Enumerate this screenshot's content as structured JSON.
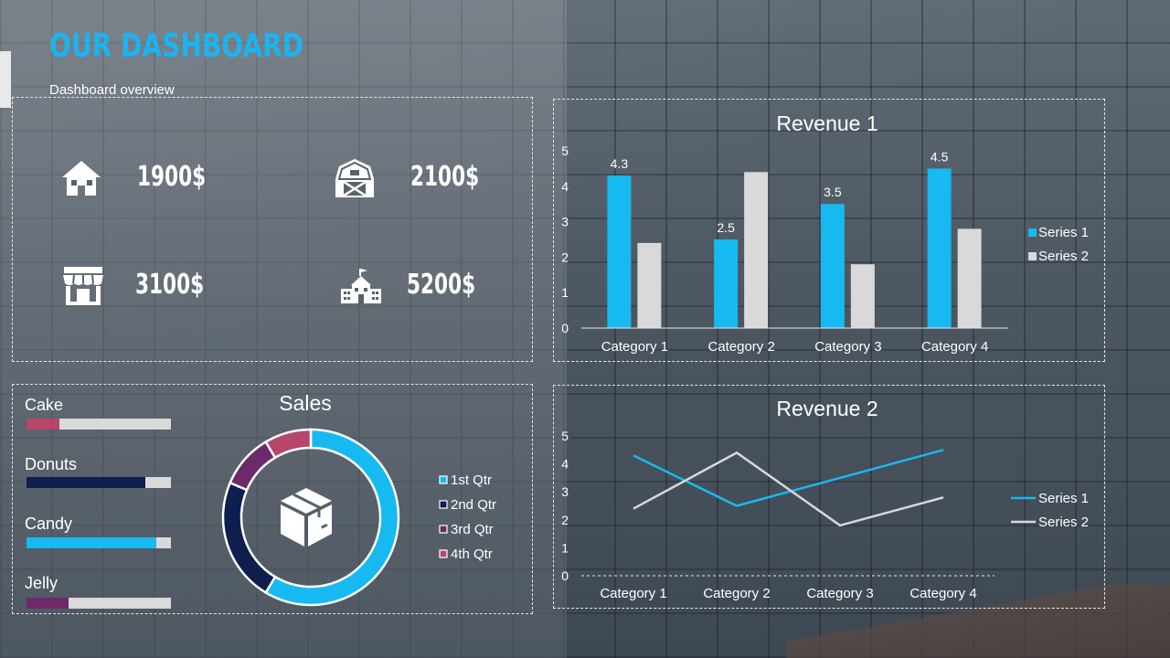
{
  "header": {
    "title": "OUR DASHBOARD",
    "subtitle": "Dashboard overview"
  },
  "kpis": [
    {
      "icon": "house-icon",
      "value": "1900$"
    },
    {
      "icon": "barn-icon",
      "value": "2100$"
    },
    {
      "icon": "store-icon",
      "value": "3100$"
    },
    {
      "icon": "school-building-icon",
      "value": "5200$"
    }
  ],
  "progress": {
    "items": [
      {
        "label": "Cake",
        "fraction": 0.23,
        "color": "#b7466a"
      },
      {
        "label": "Donuts",
        "fraction": 0.82,
        "color": "#0e1e4e"
      },
      {
        "label": "Candy",
        "fraction": 0.9,
        "color": "#17b9f1"
      },
      {
        "label": "Jelly",
        "fraction": 0.29,
        "color": "#6c2a6a"
      }
    ]
  },
  "chart_data": [
    {
      "id": "revenue1",
      "type": "bar",
      "title": "Revenue 1",
      "categories": [
        "Category 1",
        "Category 2",
        "Category 3",
        "Category 4"
      ],
      "series": [
        {
          "name": "Series 1",
          "values": [
            4.3,
            2.5,
            3.5,
            4.5
          ],
          "color": "#17b9f1",
          "labels": [
            "4.3",
            "2.5",
            "3.5",
            "4.5"
          ]
        },
        {
          "name": "Series 2",
          "values": [
            2.4,
            4.4,
            1.8,
            2.8
          ],
          "color": "#d9d9d9"
        }
      ],
      "ylim": [
        0,
        5
      ],
      "yticks": [
        "0",
        "1",
        "2",
        "3",
        "4",
        "5"
      ],
      "legend": "right"
    },
    {
      "id": "sales",
      "type": "pie",
      "title": "Sales",
      "center_icon": "package-box-icon",
      "slices": [
        {
          "name": "1st Qtr",
          "value": 8.2,
          "color": "#17b9f1"
        },
        {
          "name": "2nd Qtr",
          "value": 3.2,
          "color": "#0e1e4e"
        },
        {
          "name": "3rd Qtr",
          "value": 1.4,
          "color": "#6c2a6a"
        },
        {
          "name": "4th Qtr",
          "value": 1.2,
          "color": "#b7466a"
        }
      ],
      "legend": "right"
    },
    {
      "id": "revenue2",
      "type": "line",
      "title": "Revenue 2",
      "categories": [
        "Category 1",
        "Category 2",
        "Category 3",
        "Category 4"
      ],
      "series": [
        {
          "name": "Series 1",
          "values": [
            4.3,
            2.5,
            3.5,
            4.5
          ],
          "color": "#17b9f1"
        },
        {
          "name": "Series 2",
          "values": [
            2.4,
            4.4,
            1.8,
            2.8
          ],
          "color": "#d9d9d9"
        }
      ],
      "ylim": [
        0,
        5
      ],
      "yticks": [
        "0",
        "1",
        "2",
        "3",
        "4",
        "5"
      ],
      "legend": "right"
    }
  ]
}
